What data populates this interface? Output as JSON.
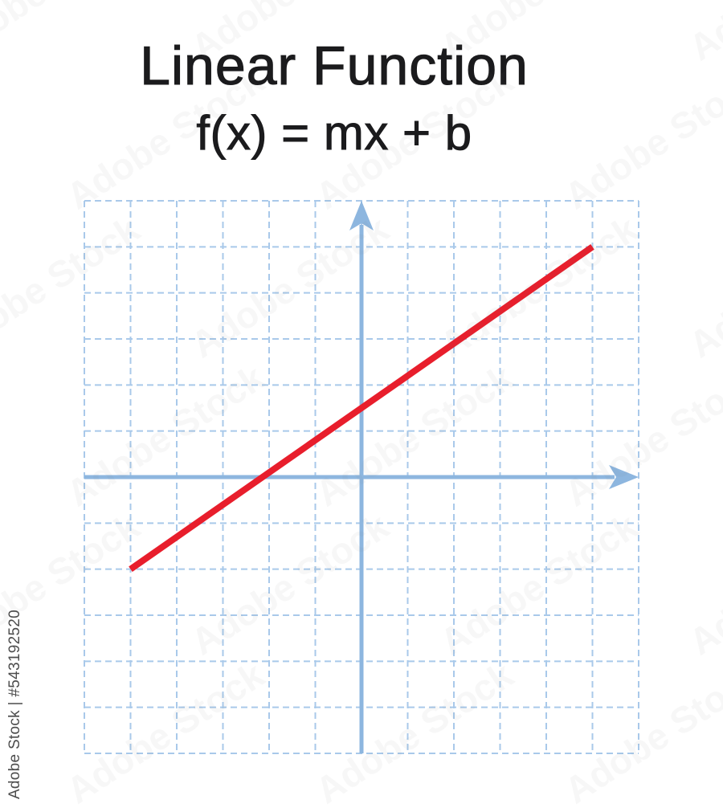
{
  "title": {
    "heading": "Linear Function",
    "formula": "f(x) = mx + b"
  },
  "watermarks": {
    "side_label": "Adobe Stock | #543192520",
    "tile_label": "Adobe Stock"
  },
  "colors": {
    "title_text": "#1b1b1d",
    "axis_blue": "#8db6df",
    "grid_blue": "#a9c9ea",
    "function_red": "#e81e2c",
    "watermark_gray": "#4d4d4d"
  },
  "chart_data": {
    "type": "line",
    "title": "Linear Function",
    "equation": "f(x) = mx + b",
    "grid": {
      "columns": 12,
      "rows": 12,
      "line_style": "dashed",
      "tick_labels": "none"
    },
    "axes": {
      "origin_column": 6,
      "origin_row": 6,
      "x_arrow": "right",
      "y_arrow": "up",
      "axis_labels": "none"
    },
    "series": [
      {
        "name": "f(x) = mx + b",
        "points_grid_units": [
          [
            -5,
            -2
          ],
          [
            5,
            5
          ]
        ],
        "x_intercept_units": -2.14,
        "y_intercept_units": 1.5
      }
    ]
  }
}
